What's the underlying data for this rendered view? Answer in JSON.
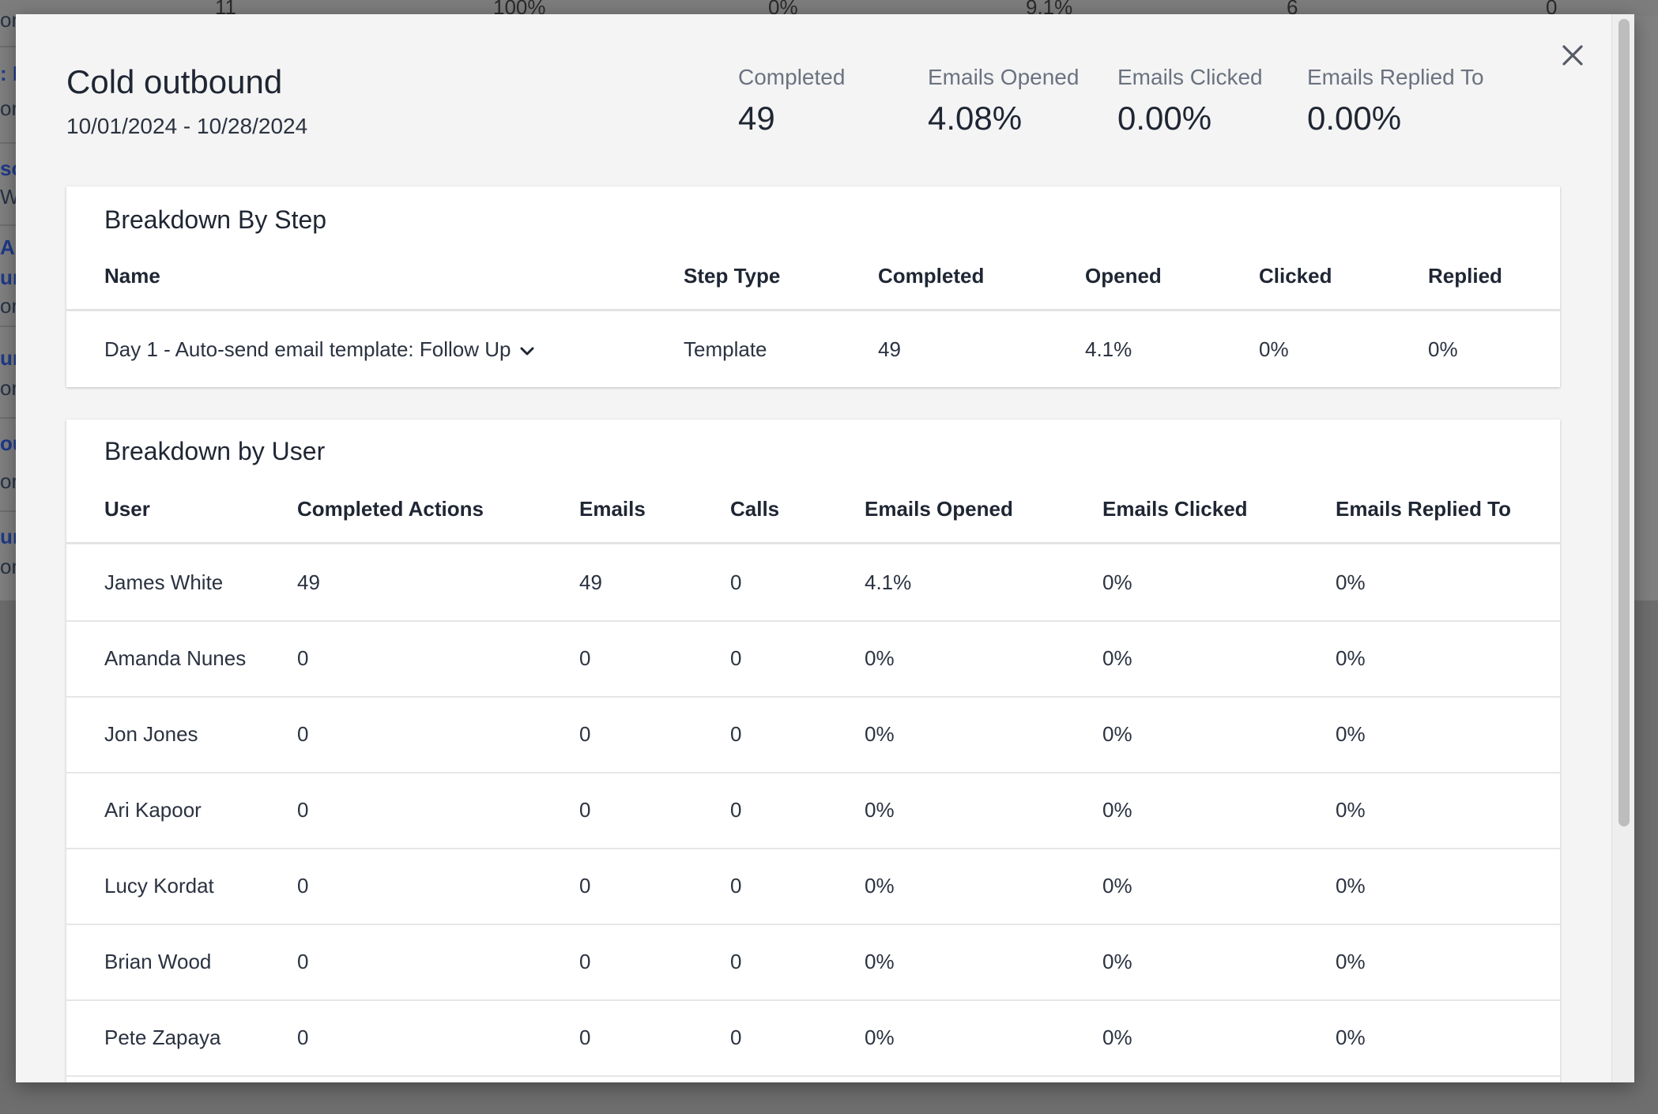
{
  "background": {
    "top_row": [
      "11",
      "100%",
      "0%",
      "9.1%",
      "6",
      "0"
    ],
    "left_fragments": [
      "or",
      ": F",
      "or",
      "so",
      "W",
      "A",
      "un",
      "or",
      "un",
      "or",
      "ou",
      "or",
      "un",
      "or"
    ]
  },
  "modal": {
    "title": "Cold outbound",
    "date_range": "10/01/2024 - 10/28/2024",
    "stats": [
      {
        "label": "Completed",
        "value": "49"
      },
      {
        "label": "Emails Opened",
        "value": "4.08%"
      },
      {
        "label": "Emails Clicked",
        "value": "0.00%"
      },
      {
        "label": "Emails Replied To",
        "value": "0.00%"
      }
    ],
    "close_icon": "close-icon"
  },
  "breakdown_step": {
    "title": "Breakdown By Step",
    "columns": [
      "Name",
      "Step Type",
      "Completed",
      "Opened",
      "Clicked",
      "Replied"
    ],
    "rows": [
      {
        "name": "Day 1 - Auto-send email template: Follow Up",
        "step_type": "Template",
        "completed": "49",
        "opened": "4.1%",
        "clicked": "0%",
        "replied": "0%"
      }
    ]
  },
  "breakdown_user": {
    "title": "Breakdown by User",
    "columns": [
      "User",
      "Completed Actions",
      "Emails",
      "Calls",
      "Emails Opened",
      "Emails Clicked",
      "Emails Replied To"
    ],
    "rows": [
      {
        "user": "James White",
        "completed_actions": "49",
        "emails": "49",
        "calls": "0",
        "opened": "4.1%",
        "clicked": "0%",
        "replied": "0%"
      },
      {
        "user": "Amanda Nunes",
        "completed_actions": "0",
        "emails": "0",
        "calls": "0",
        "opened": "0%",
        "clicked": "0%",
        "replied": "0%"
      },
      {
        "user": "Jon Jones",
        "completed_actions": "0",
        "emails": "0",
        "calls": "0",
        "opened": "0%",
        "clicked": "0%",
        "replied": "0%"
      },
      {
        "user": "Ari Kapoor",
        "completed_actions": "0",
        "emails": "0",
        "calls": "0",
        "opened": "0%",
        "clicked": "0%",
        "replied": "0%"
      },
      {
        "user": "Lucy Kordat",
        "completed_actions": "0",
        "emails": "0",
        "calls": "0",
        "opened": "0%",
        "clicked": "0%",
        "replied": "0%"
      },
      {
        "user": "Brian Wood",
        "completed_actions": "0",
        "emails": "0",
        "calls": "0",
        "opened": "0%",
        "clicked": "0%",
        "replied": "0%"
      },
      {
        "user": "Pete Zapaya",
        "completed_actions": "0",
        "emails": "0",
        "calls": "0",
        "opened": "0%",
        "clicked": "0%",
        "replied": "0%"
      }
    ]
  }
}
